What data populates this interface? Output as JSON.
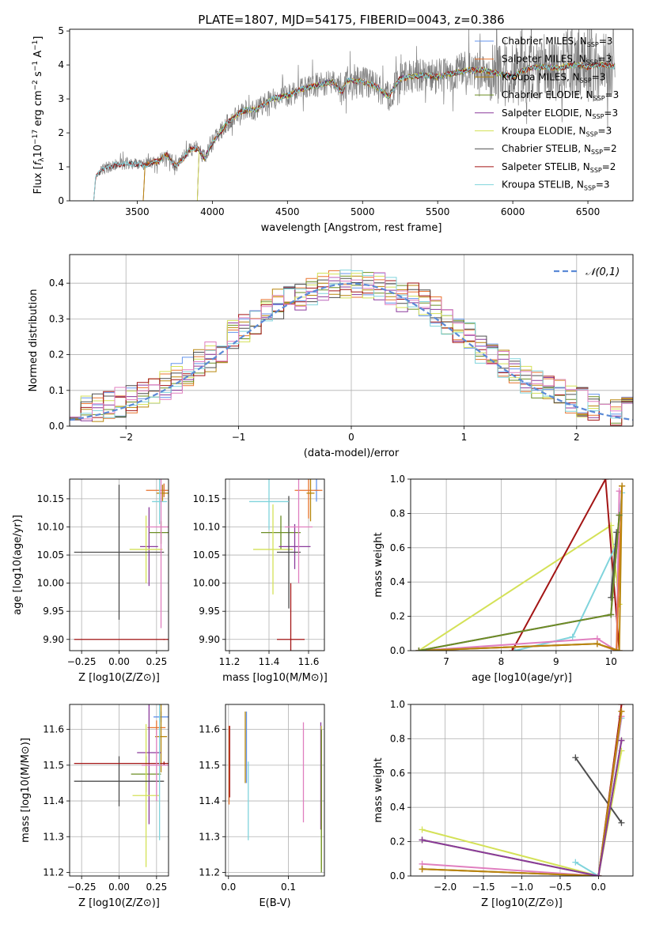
{
  "figure_title": "PLATE=1807, MJD=54175, FIBERID=0043, z=0.386",
  "chart_data": [
    {
      "id": "spectrum",
      "type": "line",
      "xlabel": "wavelength [Angstrom, rest frame]",
      "ylabel": "Flux [f_λ 10^-17 erg cm^-2 s^-1 A^-1]",
      "xlim": [
        3050,
        6800
      ],
      "ylim": [
        0,
        5.05
      ],
      "xticks": [
        3500,
        4000,
        4500,
        5000,
        5500,
        6000,
        6500
      ],
      "yticks": [
        0,
        1,
        2,
        3,
        4,
        5
      ],
      "legend_position": "top-right",
      "observed_start": 3250,
      "continuum": [
        [
          3210,
          0.5
        ],
        [
          3230,
          0.78
        ],
        [
          3280,
          0.95
        ],
        [
          3350,
          1.05
        ],
        [
          3450,
          1.1
        ],
        [
          3550,
          1.05
        ],
        [
          3650,
          1.2
        ],
        [
          3700,
          1.35
        ],
        [
          3760,
          1.0
        ],
        [
          3850,
          1.5
        ],
        [
          3900,
          1.55
        ],
        [
          3950,
          1.25
        ],
        [
          4000,
          1.7
        ],
        [
          4100,
          2.3
        ],
        [
          4200,
          2.65
        ],
        [
          4300,
          2.7
        ],
        [
          4400,
          3.0
        ],
        [
          4500,
          3.1
        ],
        [
          4600,
          3.3
        ],
        [
          4700,
          3.4
        ],
        [
          4800,
          3.5
        ],
        [
          4860,
          3.2
        ],
        [
          4900,
          3.55
        ],
        [
          5000,
          3.5
        ],
        [
          5100,
          3.35
        ],
        [
          5170,
          3.05
        ],
        [
          5250,
          3.6
        ],
        [
          5400,
          3.7
        ],
        [
          5500,
          3.65
        ],
        [
          5600,
          3.75
        ],
        [
          5700,
          3.85
        ],
        [
          5800,
          3.85
        ],
        [
          5900,
          3.75
        ],
        [
          6000,
          3.65
        ],
        [
          6100,
          3.9
        ],
        [
          6200,
          3.95
        ],
        [
          6300,
          3.9
        ],
        [
          6400,
          4.0
        ],
        [
          6500,
          3.95
        ],
        [
          6600,
          4.0
        ],
        [
          6680,
          3.95
        ]
      ],
      "series": [
        {
          "name": "Chabrier MILES, N_SSP=3",
          "color": "#6495ed",
          "start": 3540
        },
        {
          "name": "Salpeter MILES, N_SSP=3",
          "color": "#e8732e",
          "start": 3540
        },
        {
          "name": "Kroupa MILES, N_SSP=3",
          "color": "#b8860b",
          "start": 3540
        },
        {
          "name": "Chabrier ELODIE, N_SSP=3",
          "color": "#6b8e23",
          "start": 3900
        },
        {
          "name": "Salpeter ELODIE, N_SSP=3",
          "color": "#8b3a9b",
          "start": 3900
        },
        {
          "name": "Kroupa ELODIE, N_SSP=3",
          "color": "#d4e157",
          "start": 3900
        },
        {
          "name": "Chabrier STELIB, N_SSP=2",
          "color": "#4d4d4d",
          "start": 3210
        },
        {
          "name": "Salpeter STELIB, N_SSP=2",
          "color": "#a31515",
          "start": 3210
        },
        {
          "name": "Kroupa STELIB, N_SSP=3",
          "color": "#80d4dc",
          "start": 3210
        }
      ]
    },
    {
      "id": "residuals",
      "type": "line",
      "xlabel": "(data-model)/error",
      "ylabel": "Normed distribution",
      "xlim": [
        -2.5,
        2.5
      ],
      "ylim": [
        0,
        0.48
      ],
      "xticks": [
        -2,
        -1,
        0,
        1,
        2
      ],
      "yticks": [
        0.0,
        0.1,
        0.2,
        0.3,
        0.4
      ],
      "legend_position": "top-right",
      "gaussian_label": "𝒩(0,1)",
      "gaussian_color": "#5b8ad6",
      "bin_width": 0.1
    },
    {
      "id": "age_vs_Z",
      "type": "scatter",
      "xlabel": "Z [log10(Z/Z⊙)]",
      "ylabel": "age  [log10(age/yr)]",
      "xlim": [
        -0.33,
        0.33
      ],
      "ylim": [
        9.88,
        10.185
      ],
      "xticks": [
        -0.25,
        0.0,
        0.25
      ],
      "yticks": [
        9.9,
        9.95,
        10.0,
        10.05,
        10.1,
        10.15
      ],
      "points": [
        {
          "x": 0.3,
          "y": 10.165,
          "xerr": 0.02,
          "yerr": 0.012,
          "color": "#6495ed"
        },
        {
          "x": 0.3,
          "y": 10.165,
          "xerr": 0.12,
          "yerr": 0.012,
          "color": "#e8732e"
        },
        {
          "x": 0.29,
          "y": 10.16,
          "xerr": 0.04,
          "yerr": 0.015,
          "color": "#b8860b"
        },
        {
          "x": 0.28,
          "y": 10.09,
          "xerr": 0.08,
          "yerr": 0.02,
          "color": "#6b8e23"
        },
        {
          "x": 0.2,
          "y": 10.065,
          "xerr": 0.06,
          "yerr": 0.07,
          "color": "#8b3a9b"
        },
        {
          "x": 0.18,
          "y": 10.06,
          "xerr": 0.11,
          "yerr": 0.06,
          "color": "#d4e157"
        },
        {
          "x": 0.0,
          "y": 10.055,
          "xerr": 0.3,
          "yerr": 0.12,
          "color": "#4d4d4d"
        },
        {
          "x": 0.3,
          "y": 9.9,
          "xerr": 0.6,
          "yerr": 0.001,
          "color": "#a31515"
        },
        {
          "x": 0.27,
          "y": 10.145,
          "xerr": 0.05,
          "yerr": 0.04,
          "color": "#80d4dc"
        },
        {
          "x": 0.28,
          "y": 10.1,
          "xerr": 0.1,
          "yerr": 0.18,
          "color": "#e07fbf"
        }
      ]
    },
    {
      "id": "age_vs_mass",
      "type": "scatter",
      "xlabel": "mass [log10(M/M⊙)]",
      "ylabel": "",
      "xlim": [
        11.18,
        11.68
      ],
      "ylim": [
        9.88,
        10.185
      ],
      "xticks": [
        11.2,
        11.4,
        11.6
      ],
      "yticks": [
        9.9,
        9.95,
        10.0,
        10.05,
        10.1,
        10.15
      ],
      "points": [
        {
          "x": 11.64,
          "y": 10.165,
          "xerr": 0.01,
          "yerr": 0.02,
          "color": "#6495ed"
        },
        {
          "x": 11.6,
          "y": 10.165,
          "xerr": 0.07,
          "yerr": 0.05,
          "color": "#e8732e"
        },
        {
          "x": 11.61,
          "y": 10.16,
          "xerr": 0.02,
          "yerr": 0.05,
          "color": "#b8860b"
        },
        {
          "x": 11.46,
          "y": 10.09,
          "xerr": 0.1,
          "yerr": 0.03,
          "color": "#6b8e23"
        },
        {
          "x": 11.53,
          "y": 10.065,
          "xerr": 0.08,
          "yerr": 0.04,
          "color": "#8b3a9b"
        },
        {
          "x": 11.42,
          "y": 10.06,
          "xerr": 0.1,
          "yerr": 0.08,
          "color": "#d4e157"
        },
        {
          "x": 11.5,
          "y": 10.055,
          "xerr": 0.06,
          "yerr": 0.1,
          "color": "#4d4d4d"
        },
        {
          "x": 11.51,
          "y": 9.9,
          "xerr": 0.07,
          "yerr": 0.1,
          "color": "#a31515"
        },
        {
          "x": 11.4,
          "y": 10.145,
          "xerr": 0.1,
          "yerr": 0.05,
          "color": "#80d4dc"
        },
        {
          "x": 11.55,
          "y": 10.1,
          "xerr": 0.07,
          "yerr": 0.1,
          "color": "#e07fbf"
        }
      ]
    },
    {
      "id": "weight_vs_age",
      "type": "line",
      "xlabel": "age  [log10(age/yr)]",
      "ylabel": "mass weight",
      "xlim": [
        6.35,
        10.4
      ],
      "ylim": [
        0,
        1.0
      ],
      "xticks": [
        7,
        8,
        9,
        10
      ],
      "yticks": [
        0.0,
        0.2,
        0.4,
        0.6,
        0.8,
        1.0
      ],
      "series": [
        {
          "color": "#d4e157",
          "x": [
            6.5,
            10.0,
            10.15
          ],
          "y": [
            0.0,
            0.73,
            0.27
          ]
        },
        {
          "color": "#a31515",
          "x": [
            8.2,
            9.9,
            10.15
          ],
          "y": [
            0.0,
            1.0,
            0.0
          ]
        },
        {
          "color": "#80d4dc",
          "x": [
            8.25,
            9.3,
            10.1,
            10.2
          ],
          "y": [
            0.0,
            0.08,
            0.62,
            0.92
          ]
        },
        {
          "color": "#e07fbf",
          "x": [
            6.5,
            9.75,
            10.1,
            10.15
          ],
          "y": [
            0.0,
            0.07,
            0.0,
            0.93
          ]
        },
        {
          "color": "#4d4d4d",
          "x": [
            10.0,
            10.1
          ],
          "y": [
            0.31,
            0.69
          ]
        },
        {
          "color": "#6495ed",
          "x": [
            6.5,
            9.75,
            10.1,
            10.2
          ],
          "y": [
            0.0,
            0.04,
            0.0,
            0.96
          ]
        },
        {
          "color": "#e8732e",
          "x": [
            6.5,
            9.75,
            10.1,
            10.2
          ],
          "y": [
            0.0,
            0.04,
            0.0,
            0.96
          ]
        },
        {
          "color": "#b8860b",
          "x": [
            6.5,
            9.75,
            10.15,
            10.2
          ],
          "y": [
            0.0,
            0.04,
            0.0,
            0.96
          ]
        },
        {
          "color": "#8b3a9b",
          "x": [
            6.5,
            10.0,
            10.15
          ],
          "y": [
            0.0,
            0.21,
            0.79
          ]
        },
        {
          "color": "#6b8e23",
          "x": [
            6.5,
            10.0,
            10.15
          ],
          "y": [
            0.0,
            0.21,
            0.79
          ]
        }
      ]
    },
    {
      "id": "mass_vs_Z",
      "type": "scatter",
      "xlabel": "Z [log10(Z/Z⊙)]",
      "ylabel": "mass [log10(M/M⊙)]",
      "xlim": [
        -0.33,
        0.33
      ],
      "ylim": [
        11.19,
        11.67
      ],
      "xticks": [
        -0.25,
        0.0,
        0.25
      ],
      "yticks": [
        11.2,
        11.3,
        11.4,
        11.5,
        11.6
      ],
      "points": [
        {
          "x": 0.28,
          "y": 11.635,
          "xerr": 0.05,
          "yerr": 0.015,
          "color": "#6495ed"
        },
        {
          "x": 0.25,
          "y": 11.605,
          "xerr": 0.06,
          "yerr": 0.02,
          "color": "#e8732e"
        },
        {
          "x": 0.28,
          "y": 11.58,
          "xerr": 0.04,
          "yerr": 0.1,
          "color": "#b8860b"
        },
        {
          "x": 0.18,
          "y": 11.475,
          "xerr": 0.1,
          "yerr": 0.05,
          "color": "#6b8e23"
        },
        {
          "x": 0.2,
          "y": 11.535,
          "xerr": 0.08,
          "yerr": 0.2,
          "color": "#8b3a9b"
        },
        {
          "x": 0.18,
          "y": 11.415,
          "xerr": 0.09,
          "yerr": 0.2,
          "color": "#d4e157"
        },
        {
          "x": 0.0,
          "y": 11.455,
          "xerr": 0.3,
          "yerr": 0.07,
          "color": "#4d4d4d"
        },
        {
          "x": 0.3,
          "y": 11.505,
          "xerr": 0.6,
          "yerr": 0.005,
          "color": "#a31515"
        },
        {
          "x": 0.27,
          "y": 11.5,
          "xerr": 0.07,
          "yerr": 0.21,
          "color": "#80d4dc"
        },
        {
          "x": 0.25,
          "y": 11.5,
          "xerr": 0.1,
          "yerr": 0.1,
          "color": "#e07fbf"
        }
      ]
    },
    {
      "id": "mass_vs_EBV",
      "type": "scatter",
      "xlabel": "E(B-V)",
      "ylabel": "",
      "xlim": [
        -0.005,
        0.16
      ],
      "ylim": [
        11.19,
        11.67
      ],
      "xticks": [
        0.0,
        0.1
      ],
      "yticks": [
        11.2,
        11.3,
        11.4,
        11.5,
        11.6
      ],
      "points": [
        {
          "x": 0.001,
          "y": 11.5,
          "xerr": 0.0,
          "yerr": 0.11,
          "color": "#e8732e"
        },
        {
          "x": 0.002,
          "y": 11.51,
          "xerr": 0.0,
          "yerr": 0.1,
          "color": "#a31515"
        },
        {
          "x": 0.03,
          "y": 11.55,
          "xerr": 0.0,
          "yerr": 0.1,
          "color": "#6495ed"
        },
        {
          "x": 0.028,
          "y": 11.55,
          "xerr": 0.0,
          "yerr": 0.1,
          "color": "#b8860b"
        },
        {
          "x": 0.033,
          "y": 11.4,
          "xerr": 0.0,
          "yerr": 0.11,
          "color": "#80d4dc"
        },
        {
          "x": 0.125,
          "y": 11.48,
          "xerr": 0.0,
          "yerr": 0.14,
          "color": "#e07fbf"
        },
        {
          "x": 0.154,
          "y": 11.47,
          "xerr": 0.0,
          "yerr": 0.15,
          "color": "#8b3a9b"
        },
        {
          "x": 0.155,
          "y": 11.41,
          "xerr": 0.0,
          "yerr": 0.2,
          "color": "#d4e157"
        },
        {
          "x": 0.155,
          "y": 11.4,
          "xerr": 0.0,
          "yerr": 0.2,
          "color": "#6b8e23"
        }
      ]
    },
    {
      "id": "weight_vs_Z",
      "type": "line",
      "xlabel": "Z [log10(Z/Z⊙)]",
      "ylabel": "mass weight",
      "xlim": [
        -2.45,
        0.45
      ],
      "ylim": [
        0,
        1.0
      ],
      "xticks": [
        -2.0,
        -1.5,
        -1.0,
        -0.5,
        0.0
      ],
      "yticks": [
        0.0,
        0.2,
        0.4,
        0.6,
        0.8,
        1.0
      ],
      "series": [
        {
          "color": "#d4e157",
          "x": [
            -2.3,
            0.0,
            0.3
          ],
          "y": [
            0.27,
            0.0,
            0.73
          ]
        },
        {
          "color": "#4d4d4d",
          "x": [
            -0.3,
            0.3
          ],
          "y": [
            0.69,
            0.31
          ]
        },
        {
          "color": "#80d4dc",
          "x": [
            -0.3,
            0.0,
            0.3
          ],
          "y": [
            0.08,
            0.0,
            0.92
          ]
        },
        {
          "color": "#e07fbf",
          "x": [
            -2.3,
            0.0,
            0.3
          ],
          "y": [
            0.07,
            0.0,
            0.93
          ]
        },
        {
          "color": "#a31515",
          "x": [
            0.0,
            0.3
          ],
          "y": [
            0.0,
            1.0
          ]
        },
        {
          "color": "#6495ed",
          "x": [
            -2.3,
            0.0,
            0.3
          ],
          "y": [
            0.04,
            0.0,
            0.96
          ]
        },
        {
          "color": "#e8732e",
          "x": [
            -2.3,
            0.0,
            0.3
          ],
          "y": [
            0.04,
            0.0,
            0.96
          ]
        },
        {
          "color": "#b8860b",
          "x": [
            -2.3,
            0.0,
            0.3
          ],
          "y": [
            0.04,
            0.0,
            0.96
          ]
        },
        {
          "color": "#6b8e23",
          "x": [
            -2.3,
            0.0,
            0.3
          ],
          "y": [
            0.21,
            0.0,
            0.79
          ]
        },
        {
          "color": "#8b3a9b",
          "x": [
            -2.3,
            0.0,
            0.3
          ],
          "y": [
            0.21,
            0.0,
            0.79
          ]
        }
      ]
    }
  ]
}
